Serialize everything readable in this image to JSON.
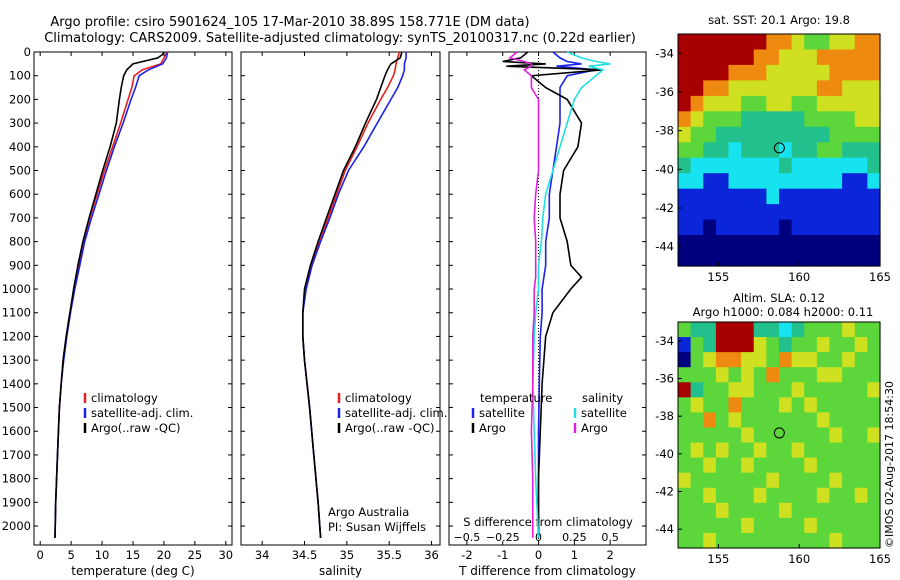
{
  "header": {
    "line1": "Argo profile: csiro 5901624_105 17-Mar-2010 38.89S 158.771E (DM data)",
    "line2": "Climatology: CARS2009. Satellite-adjusted climatology: synTS_20100317.nc (0.22d earlier)"
  },
  "credit": "Argo Australia",
  "pi": "PI: Susan Wijffels",
  "stamp": "©IMOS 02-Aug-2017 18:54:30",
  "colors": {
    "climatology": "#e8201c",
    "satellite": "#1c22e8",
    "argo": "#000000",
    "sal_satellite": "#22e0e0",
    "sal_argo": "#e020e0",
    "marker": "#000000"
  },
  "chart_data": [
    {
      "type": "line",
      "id": "temperature",
      "xlabel": "temperature (deg C)",
      "xlim": [
        -1,
        31
      ],
      "xticks": [
        0,
        5,
        10,
        15,
        20,
        25,
        30
      ],
      "ylim": [
        2080,
        0
      ],
      "yticks": [
        0,
        100,
        200,
        300,
        400,
        500,
        600,
        700,
        800,
        900,
        1000,
        1100,
        1200,
        1300,
        1400,
        1500,
        1600,
        1700,
        1800,
        1900,
        2000
      ],
      "legend": [
        "climatology",
        "satellite-adj. clim.",
        "Argo(..raw -QC)"
      ],
      "depth": [
        0,
        10,
        25,
        50,
        75,
        100,
        150,
        200,
        300,
        400,
        500,
        600,
        700,
        800,
        900,
        1000,
        1100,
        1200,
        1300,
        1400,
        1500,
        1700,
        1900,
        2050
      ],
      "series": [
        {
          "name": "climatology",
          "key": "climatology",
          "values": [
            20.4,
            20.3,
            20.0,
            19.5,
            16.5,
            15.2,
            14.8,
            14.2,
            13.0,
            11.7,
            10.4,
            9.2,
            8.0,
            7.0,
            6.2,
            5.5,
            4.8,
            4.2,
            3.7,
            3.4,
            3.1,
            2.8,
            2.5,
            2.4
          ]
        },
        {
          "name": "satellite-adj. clim.",
          "key": "satellite",
          "values": [
            20.6,
            20.5,
            20.4,
            19.8,
            17.5,
            16.0,
            15.4,
            14.7,
            13.4,
            12.0,
            10.7,
            9.5,
            8.3,
            7.2,
            6.4,
            5.6,
            4.9,
            4.3,
            3.8,
            3.4,
            3.1,
            2.8,
            2.5,
            2.4
          ]
        },
        {
          "name": "Argo(..raw -QC)",
          "key": "argo",
          "values": [
            20.0,
            19.8,
            19.0,
            15.0,
            14.0,
            13.5,
            13.1,
            12.8,
            12.3,
            11.3,
            10.1,
            9.0,
            7.9,
            6.9,
            6.1,
            5.4,
            4.8,
            4.2,
            3.7,
            3.4,
            3.1,
            2.8,
            2.5,
            2.4
          ]
        }
      ]
    },
    {
      "type": "line",
      "id": "salinity",
      "xlabel": "salinity",
      "xlim": [
        33.75,
        36.1
      ],
      "xticks": [
        34,
        34.5,
        35,
        35.5,
        36
      ],
      "ylim": [
        2080,
        0
      ],
      "legend": [
        "climatology",
        "satellite-adj. clim.",
        "Argo(..raw -QC)"
      ],
      "depth": [
        0,
        25,
        50,
        75,
        100,
        150,
        200,
        300,
        400,
        500,
        600,
        700,
        800,
        900,
        1000,
        1100,
        1200,
        1300,
        1500,
        1700,
        1900,
        2050
      ],
      "series": [
        {
          "name": "climatology",
          "key": "climatology",
          "values": [
            35.62,
            35.6,
            35.58,
            35.57,
            35.55,
            35.48,
            35.4,
            35.25,
            35.12,
            34.98,
            34.88,
            34.78,
            34.68,
            34.58,
            34.51,
            34.48,
            34.48,
            34.5,
            34.56,
            34.61,
            34.66,
            34.69
          ]
        },
        {
          "name": "satellite-adj. clim.",
          "key": "satellite",
          "values": [
            35.7,
            35.7,
            35.68,
            35.68,
            35.66,
            35.6,
            35.52,
            35.36,
            35.2,
            35.02,
            34.9,
            34.8,
            34.69,
            34.59,
            34.52,
            34.48,
            34.48,
            34.5,
            34.56,
            34.61,
            34.66,
            34.69
          ]
        },
        {
          "name": "Argo(..raw -QC)",
          "key": "argo",
          "values": [
            35.65,
            35.63,
            35.52,
            35.48,
            35.45,
            35.4,
            35.35,
            35.22,
            35.1,
            34.96,
            34.86,
            34.76,
            34.66,
            34.57,
            34.5,
            34.48,
            34.48,
            34.5,
            34.56,
            34.61,
            34.66,
            34.69
          ]
        }
      ]
    },
    {
      "type": "line",
      "id": "difference",
      "xlabel": "T difference from climatology",
      "xlabel2": "S difference from climatology",
      "xlim": [
        -2.5,
        3
      ],
      "xticks": [
        -2,
        -1,
        0,
        1,
        2
      ],
      "x2ticks": [
        -0.5,
        -0.25,
        0,
        0.25,
        0.5
      ],
      "x2labels": [
        "−0.5",
        "−0.25",
        "0",
        "0.25",
        "0.5"
      ],
      "ylim": [
        2080,
        0
      ],
      "legend_left_title": "temperature",
      "legend_right_title": "salinity",
      "legend_left": [
        "satellite",
        "Argo"
      ],
      "legend_right": [
        "satellite",
        "Argo"
      ],
      "depth": [
        0,
        25,
        40,
        50,
        60,
        75,
        100,
        150,
        200,
        300,
        400,
        500,
        600,
        700,
        800,
        900,
        950,
        1000,
        1100,
        1200,
        1400,
        1600,
        1800,
        2050
      ],
      "series": [
        {
          "name": "satellite",
          "key": "satellite",
          "values": [
            0.4,
            0.6,
            0.8,
            1.2,
            0.5,
            1.6,
            0.8,
            0.6,
            0.6,
            0.6,
            0.5,
            0.4,
            0.3,
            0.3,
            0.2,
            0.2,
            0.15,
            0.1,
            0.1,
            0.05,
            0.02,
            0.0,
            0.0,
            0.0
          ]
        },
        {
          "name": "Argo",
          "key": "argo",
          "values": [
            -0.3,
            -0.5,
            -1.0,
            0.2,
            -0.9,
            1.8,
            -0.2,
            0.2,
            0.8,
            1.2,
            1.1,
            0.7,
            0.6,
            0.6,
            0.8,
            0.9,
            1.2,
            0.9,
            0.4,
            0.2,
            0.1,
            0.05,
            0.0,
            0.0
          ]
        },
        {
          "name": "satellite",
          "key": "sal_satellite",
          "values": [
            0.2,
            0.3,
            0.4,
            0.5,
            0.35,
            0.45,
            0.4,
            0.3,
            0.25,
            0.2,
            0.15,
            0.1,
            0.05,
            0.03,
            0.02,
            0.0,
            0.0,
            0.0,
            -0.02,
            -0.03,
            -0.04,
            -0.03,
            -0.02,
            0.0
          ]
        },
        {
          "name": "Argo",
          "key": "sal_argo",
          "values": [
            -0.15,
            -0.2,
            -0.1,
            -0.05,
            -0.05,
            -0.1,
            -0.05,
            -0.05,
            0.0,
            0.0,
            0.0,
            0.0,
            -0.02,
            -0.03,
            -0.02,
            -0.02,
            -0.02,
            -0.03,
            -0.03,
            -0.04,
            -0.04,
            -0.05,
            -0.04,
            -0.04
          ]
        }
      ]
    },
    {
      "type": "heatmap",
      "id": "sst_map",
      "title": "sat. SST: 20.1  Argo: 19.8",
      "xlim": [
        152.5,
        165
      ],
      "ylim": [
        -45,
        -33
      ],
      "xticks": [
        155,
        160,
        165
      ],
      "yticks": [
        -34,
        -36,
        -38,
        -40,
        -42,
        -44
      ],
      "marker": [
        158.77,
        -38.89
      ],
      "rows": [
        "RRRRRRROOYGGYYOO",
        "RRRRRROOYYYOOOOO",
        "RRRROOOYYYYYOOOO",
        "RROOYYYYYYYOOYYY",
        "ROYYYGGYYGGYYYYY",
        "OYGGGLLLLLGGGGYY",
        "YGGLLLLLLLLLGGGG",
        "GGLLCLLLCLLGGLLL",
        "LCCCCCCCLCCCCCCL",
        "CCBBCCCCCCCCCBBC",
        "BBBBBBBCBBBBBBBB",
        "BBBBBBBBBBBBBBBB",
        "BBNBBBBBNBBBBBBB",
        "NNNNNNNNNNNNNNNN",
        "NNNNNNNNNNNNNNNN"
      ]
    },
    {
      "type": "heatmap",
      "id": "sla_map",
      "title": "Altim. SLA: 0.12",
      "subtitle": "Argo h1000: 0.084 h2000: 0.11",
      "xlim": [
        152.5,
        165
      ],
      "ylim": [
        -45,
        -33
      ],
      "xticks": [
        155,
        160,
        165
      ],
      "yticks": [
        -34,
        -36,
        -38,
        -40,
        -42,
        -44
      ],
      "marker": [
        158.77,
        -38.89
      ],
      "rows": [
        "GLLRRRLLCLGGGYGG",
        "BGLRRRYGLGGYGGYG",
        "NGYOOYYGOYYGGYGG",
        "GGGYGYGOGGGYYGGG",
        "RLGGYYGGGYGGGGGY",
        "GYGGOGGGYGYGGGGG",
        "GGOGYGGGGGGYGGGG",
        "GGGGGYGGGGGGYGGY",
        "GYGYGGYGGYGGGGGG",
        "GGYGGYGGGGYGGGGG",
        "YGGGGGGYGGGGYGGG",
        "GGYGGGYGGGGYGGYG",
        "GGGYGGGGYGGGGGGG",
        "GGGGGYGGGGYGGGGG",
        "GGYGGGGGGGGGYGGG"
      ]
    }
  ]
}
